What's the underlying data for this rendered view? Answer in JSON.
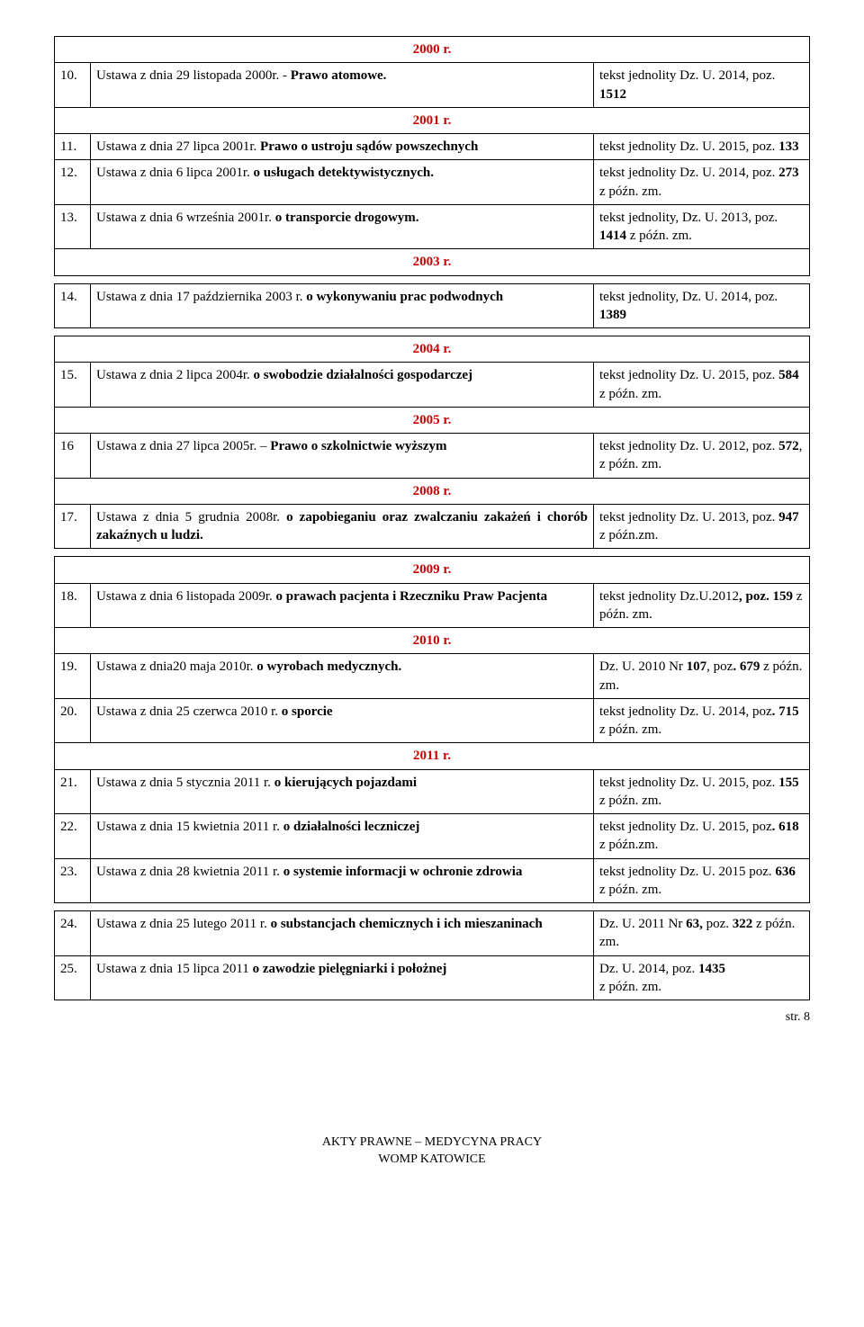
{
  "year_headers": {
    "y2000": "2000 r.",
    "y2001": "2001 r.",
    "y2003": "2003 r.",
    "y2004": "2004 r.",
    "y2005": "2005 r.",
    "y2008": "2008 r.",
    "y2009": "2009 r.",
    "y2010": "2010 r.",
    "y2011": "2011 r."
  },
  "rows": {
    "r10": {
      "num": "10.",
      "text_a": "Ustawa z dnia 29 listopada 2000r. - ",
      "text_b": "Prawo atomowe.",
      "ref_a": "tekst jednolity Dz. U. 2014, poz. ",
      "ref_b": "1512"
    },
    "r11": {
      "num": "11.",
      "text_a": "Ustawa z dnia 27 lipca 2001r. ",
      "text_b": "Prawo o ustroju sądów powszechnych",
      "ref_a": "tekst jednolity Dz. U. 2015, poz. ",
      "ref_b": "133"
    },
    "r12": {
      "num": "12.",
      "text_a": "Ustawa z dnia  6 lipca 2001r. ",
      "text_b": "o usługach detektywistycznych.",
      "ref_a": "tekst jednolity Dz. U. 2014, poz. ",
      "ref_b": "273",
      "ref_c": " z późn. zm."
    },
    "r13": {
      "num": "13.",
      "text_a": "Ustawa z dnia 6 września 2001r. ",
      "text_b": "o transporcie drogowym.",
      "ref_a": "tekst jednolity,  Dz. U. 2013, poz. ",
      "ref_b": "1414",
      "ref_c": " z późn. zm."
    },
    "r14": {
      "num": "14.",
      "text_a": "Ustawa z dnia 17 października 2003 r. ",
      "text_b": "o wykonywaniu prac podwodnych",
      "ref_a": "tekst jednolity,  Dz. U. 2014, poz. ",
      "ref_b": "1389"
    },
    "r15": {
      "num": "15.",
      "text_a": "Ustawa z dnia 2 lipca 2004r. ",
      "text_b": "o swobodzie działalności gospodarczej",
      "ref_a": "tekst jednolity  Dz. U. 2015, poz. ",
      "ref_b": "584",
      "ref_c": " z późn. zm."
    },
    "r16": {
      "num": "16",
      "text_a": "Ustawa z dnia 27 lipca 2005r. – ",
      "text_b": "Prawo o szkolnictwie wyższym",
      "ref_a": "tekst jednolity  Dz. U. 2012, poz. ",
      "ref_b": "572",
      "ref_c": ", z późn. zm."
    },
    "r17": {
      "num": "17.",
      "text_a": "Ustawa z dnia 5 grudnia 2008r. ",
      "text_b": "o zapobieganiu oraz zwalczaniu  zakażeń i chorób zakaźnych u ludzi.",
      "ref_a": "tekst jednolity  Dz. U. 2013, poz. ",
      "ref_b": "947",
      "ref_c": " z późn.zm."
    },
    "r18": {
      "num": "18.",
      "text_a": "Ustawa z dnia 6 listopada 2009r. ",
      "text_b": "o prawach pacjenta i Rzeczniku Praw Pacjenta",
      "ref_a": "tekst jednolity Dz.U.2012",
      "ref_b": ", poz",
      "ref_c": ". 159",
      "ref_d": " z późn. zm."
    },
    "r19": {
      "num": "19.",
      "text_a": "Ustawa z dnia20 maja 2010r. ",
      "text_b": "o wyrobach medycznych.",
      "ref_a": "Dz. U. 2010  Nr ",
      "ref_b": "107",
      "ref_c": ", poz",
      "ref_d": ". 679 ",
      "ref_e": " z późn. zm."
    },
    "r20": {
      "num": "20.",
      "text_a": "Ustawa z dnia 25 czerwca 2010 r. ",
      "text_b": "o sporcie",
      "ref_a": "tekst jednolity Dz. U. 2014, poz",
      "ref_b": ". 715 ",
      "ref_c": " z późn. zm."
    },
    "r21": {
      "num": "21.",
      "text_a": "Ustawa z dnia 5 stycznia 2011 r. ",
      "text_b": "o kierujących pojazdami",
      "ref_a": "tekst jednolity Dz. U. 2015, poz. ",
      "ref_b": "155",
      "ref_c": " z późn. zm."
    },
    "r22": {
      "num": "22.",
      "text_a": "Ustawa z dnia 15 kwietnia 2011 r. ",
      "text_b": "o działalności leczniczej",
      "ref_a": "tekst jednolity  Dz. U. 2015, poz",
      "ref_b": ".  618",
      "ref_c": " z późn.zm."
    },
    "r23": {
      "num": "23.",
      "text_a": "Ustawa z dnia 28 kwietnia 2011 r. ",
      "text_b": "o systemie informacji w ochronie zdrowia",
      "ref_a": "tekst jednolity  Dz. U. 2015 poz. ",
      "ref_b": "636",
      "ref_c": " z późn. zm."
    },
    "r24": {
      "num": "24.",
      "text_a": "Ustawa z dnia 25 lutego 2011 r. ",
      "text_b": "o substancjach chemicznych i ich mieszaninach",
      "ref_a": "Dz. U. 2011  Nr ",
      "ref_b": "63,",
      "ref_c": " poz. ",
      "ref_d": "322",
      "ref_e": " z późn. zm."
    },
    "r25": {
      "num": "25.",
      "text_a": "Ustawa z dnia 15 lipca 2011 ",
      "text_b": "o zawodzie pielęgniarki i położnej",
      "ref_a": "Dz. U. 2014, poz. ",
      "ref_b": "1435",
      "ref_c": " z późn. zm."
    }
  },
  "footer": {
    "line1": "AKTY PRAWNE – MEDYCYNA PRACY",
    "line2": "WOMP  KATOWICE",
    "page": "str. 8"
  }
}
